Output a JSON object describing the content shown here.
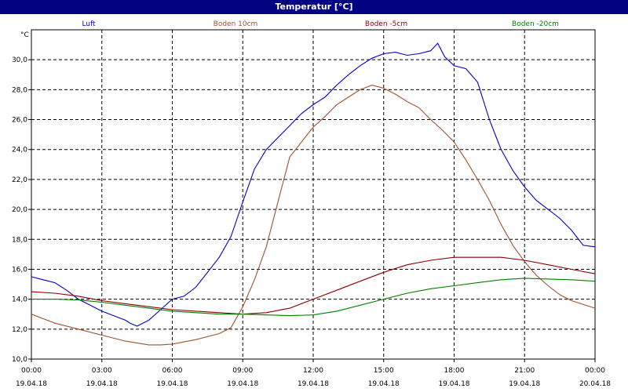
{
  "window": {
    "title": "Temperatur [°C]"
  },
  "chart_data": {
    "type": "line",
    "ylabel": "°C",
    "ylim": [
      10,
      32
    ],
    "yticks": [
      "10,0",
      "12,0",
      "14,0",
      "16,0",
      "18,0",
      "20,0",
      "22,0",
      "24,0",
      "26,0",
      "28,0",
      "30,0"
    ],
    "ytick_values": [
      10,
      12,
      14,
      16,
      18,
      20,
      22,
      24,
      26,
      28,
      30
    ],
    "xlim": [
      0,
      24
    ],
    "xticks": [
      {
        "time": "00:00",
        "date": "19.04.18"
      },
      {
        "time": "03:00",
        "date": "19.04.18"
      },
      {
        "time": "06:00",
        "date": "19.04.18"
      },
      {
        "time": "09:00",
        "date": "19.04.18"
      },
      {
        "time": "12:00",
        "date": "19.04.18"
      },
      {
        "time": "15:00",
        "date": "19.04.18"
      },
      {
        "time": "18:00",
        "date": "19.04.18"
      },
      {
        "time": "21:00",
        "date": "19.04.18"
      },
      {
        "time": "00:00",
        "date": "20.04.18"
      }
    ],
    "grid": true,
    "legend_position": "top",
    "series": [
      {
        "name": "Luft",
        "color": "#0000cc",
        "points": [
          [
            0,
            15.5
          ],
          [
            0.5,
            15.3
          ],
          [
            1,
            15.1
          ],
          [
            1.5,
            14.6
          ],
          [
            2,
            14.0
          ],
          [
            2.5,
            13.6
          ],
          [
            3,
            13.2
          ],
          [
            3.5,
            12.9
          ],
          [
            4,
            12.6
          ],
          [
            4.2,
            12.4
          ],
          [
            4.5,
            12.2
          ],
          [
            5,
            12.6
          ],
          [
            5.5,
            13.3
          ],
          [
            6,
            14.0
          ],
          [
            6.5,
            14.2
          ],
          [
            7,
            14.8
          ],
          [
            7.5,
            15.8
          ],
          [
            8,
            16.8
          ],
          [
            8.5,
            18.2
          ],
          [
            9,
            20.5
          ],
          [
            9.5,
            22.7
          ],
          [
            10,
            24.0
          ],
          [
            10.5,
            24.8
          ],
          [
            11,
            25.6
          ],
          [
            11.5,
            26.4
          ],
          [
            12,
            27.0
          ],
          [
            12.5,
            27.5
          ],
          [
            13,
            28.3
          ],
          [
            13.5,
            29.0
          ],
          [
            14,
            29.6
          ],
          [
            14.5,
            30.1
          ],
          [
            15,
            30.4
          ],
          [
            15.5,
            30.5
          ],
          [
            16,
            30.3
          ],
          [
            16.5,
            30.4
          ],
          [
            17,
            30.6
          ],
          [
            17.3,
            31.1
          ],
          [
            17.6,
            30.2
          ],
          [
            18,
            29.6
          ],
          [
            18.5,
            29.4
          ],
          [
            19,
            28.5
          ],
          [
            19.5,
            26.0
          ],
          [
            20,
            24.0
          ],
          [
            20.5,
            22.6
          ],
          [
            21,
            21.5
          ],
          [
            21.5,
            20.6
          ],
          [
            22,
            20.0
          ],
          [
            22.5,
            19.4
          ],
          [
            23,
            18.6
          ],
          [
            23.5,
            17.6
          ],
          [
            24,
            17.5
          ]
        ]
      },
      {
        "name": "Boden 10cm",
        "color": "#a0522d",
        "points": [
          [
            0,
            13.0
          ],
          [
            0.5,
            12.7
          ],
          [
            1,
            12.4
          ],
          [
            2,
            12.0
          ],
          [
            3,
            11.6
          ],
          [
            4,
            11.2
          ],
          [
            5,
            10.95
          ],
          [
            5.5,
            10.95
          ],
          [
            6,
            11.0
          ],
          [
            7,
            11.3
          ],
          [
            8,
            11.7
          ],
          [
            8.5,
            12.1
          ],
          [
            9,
            13.5
          ],
          [
            9.5,
            15.3
          ],
          [
            10,
            17.5
          ],
          [
            10.5,
            20.5
          ],
          [
            11,
            23.5
          ],
          [
            11.5,
            24.5
          ],
          [
            12,
            25.5
          ],
          [
            12.5,
            26.2
          ],
          [
            13,
            27.0
          ],
          [
            13.5,
            27.5
          ],
          [
            14,
            28.0
          ],
          [
            14.5,
            28.3
          ],
          [
            15,
            28.1
          ],
          [
            15.5,
            27.7
          ],
          [
            16,
            27.2
          ],
          [
            16.5,
            26.8
          ],
          [
            17,
            26.0
          ],
          [
            17.5,
            25.3
          ],
          [
            18,
            24.5
          ],
          [
            18.5,
            23.3
          ],
          [
            19,
            22.0
          ],
          [
            19.5,
            20.6
          ],
          [
            20,
            19.0
          ],
          [
            20.5,
            17.6
          ],
          [
            21,
            16.5
          ],
          [
            21.5,
            15.6
          ],
          [
            22,
            14.9
          ],
          [
            22.5,
            14.3
          ],
          [
            23,
            13.9
          ],
          [
            24,
            13.4
          ]
        ]
      },
      {
        "name": "Boden -5cm",
        "color": "#8b0000",
        "points": [
          [
            0,
            14.5
          ],
          [
            1,
            14.4
          ],
          [
            2,
            14.2
          ],
          [
            3,
            13.9
          ],
          [
            4,
            13.7
          ],
          [
            5,
            13.5
          ],
          [
            6,
            13.3
          ],
          [
            7,
            13.2
          ],
          [
            8,
            13.1
          ],
          [
            9,
            13.0
          ],
          [
            10,
            13.1
          ],
          [
            11,
            13.4
          ],
          [
            12,
            14.0
          ],
          [
            13,
            14.6
          ],
          [
            14,
            15.2
          ],
          [
            15,
            15.8
          ],
          [
            16,
            16.3
          ],
          [
            17,
            16.6
          ],
          [
            18,
            16.8
          ],
          [
            19,
            16.8
          ],
          [
            20,
            16.8
          ],
          [
            21,
            16.6
          ],
          [
            22,
            16.3
          ],
          [
            23,
            16.0
          ],
          [
            24,
            15.7
          ]
        ]
      },
      {
        "name": "Boden -20cm",
        "color": "#008000",
        "points": [
          [
            0,
            14.0
          ],
          [
            1,
            14.0
          ],
          [
            2,
            13.95
          ],
          [
            3,
            13.8
          ],
          [
            4,
            13.6
          ],
          [
            5,
            13.4
          ],
          [
            6,
            13.2
          ],
          [
            7,
            13.1
          ],
          [
            8,
            13.0
          ],
          [
            9,
            13.0
          ],
          [
            10,
            12.95
          ],
          [
            11,
            12.9
          ],
          [
            12,
            12.95
          ],
          [
            13,
            13.2
          ],
          [
            14,
            13.6
          ],
          [
            15,
            14.0
          ],
          [
            16,
            14.4
          ],
          [
            17,
            14.7
          ],
          [
            18,
            14.9
          ],
          [
            19,
            15.1
          ],
          [
            20,
            15.3
          ],
          [
            21,
            15.4
          ],
          [
            22,
            15.35
          ],
          [
            23,
            15.3
          ],
          [
            24,
            15.2
          ]
        ]
      }
    ]
  }
}
